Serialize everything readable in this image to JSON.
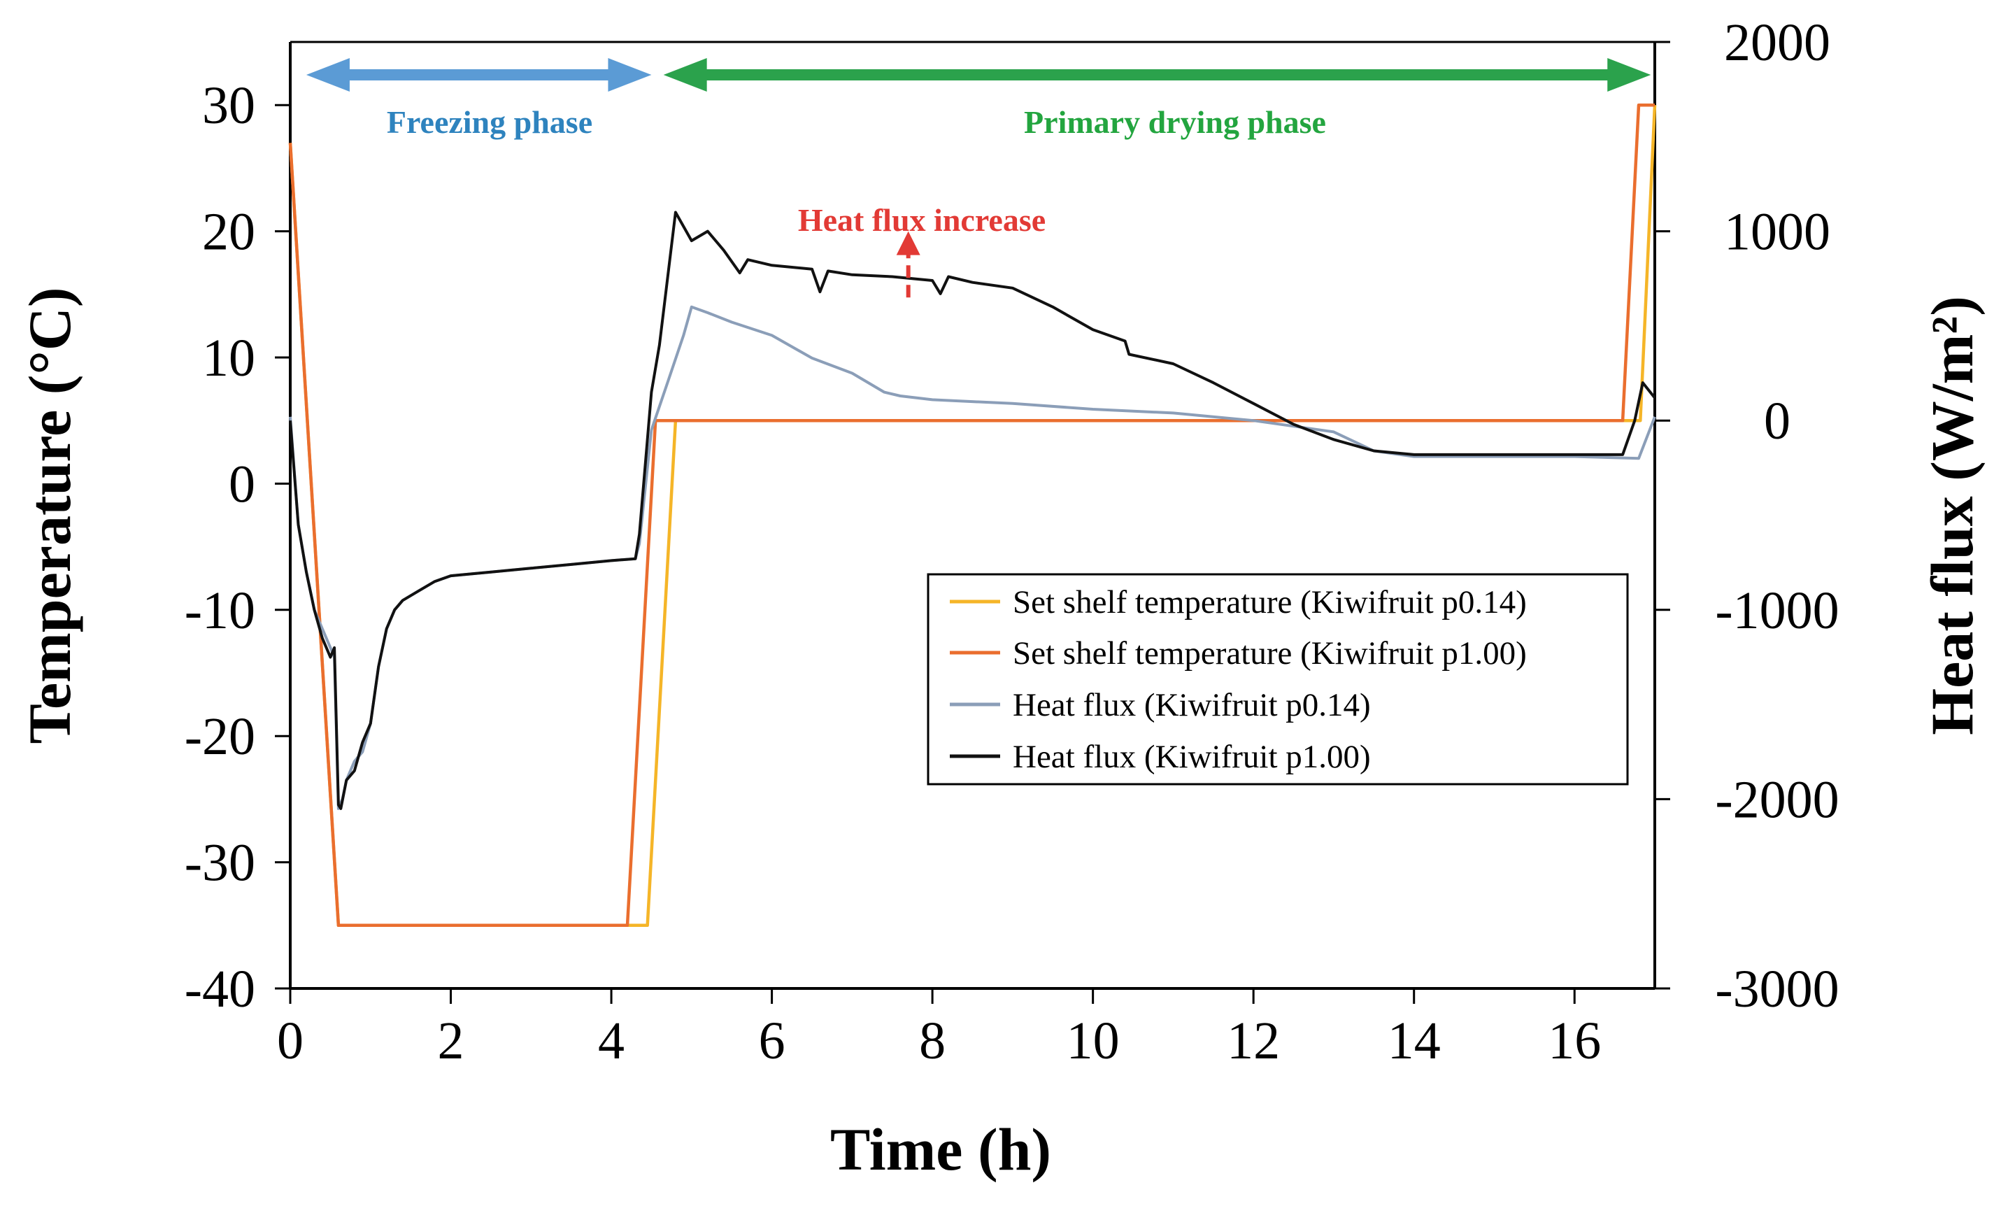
{
  "chart_data": {
    "type": "line",
    "title": "",
    "xlabel": "Time (h)",
    "ylabel_left": "Temperature (°C)",
    "ylabel_right": "Heat flux (W/m²)",
    "xlim": [
      0,
      17
    ],
    "ylim_left": [
      -40,
      35
    ],
    "ylim_right": [
      -3000,
      2000
    ],
    "x_ticks": [
      0,
      2,
      4,
      6,
      8,
      10,
      12,
      14,
      16
    ],
    "x_tick_labels": [
      "0",
      "2",
      "4",
      "6",
      "8",
      "10",
      "12",
      "14",
      "16"
    ],
    "y_left_ticks": [
      -40,
      -30,
      -20,
      -10,
      0,
      10,
      20,
      30
    ],
    "y_left_tick_labels": [
      "-40",
      "-30",
      "-20",
      "-10",
      "0",
      "10",
      "20",
      "30"
    ],
    "y_right_ticks": [
      -3000,
      -2000,
      -1000,
      0,
      1000,
      2000
    ],
    "y_right_tick_labels": [
      "-3000",
      "-2000",
      "-1000",
      "0",
      "1000",
      "2000"
    ],
    "grid": false,
    "legend_position": "center-right",
    "series": [
      {
        "name": "Set shelf temperature (Kiwifruit p0.14)",
        "axis": "left",
        "color": "#F5B528",
        "x": [
          0,
          0.6,
          4.45,
          4.8,
          16.6,
          16.82,
          17.0
        ],
        "y": [
          27,
          -35,
          -35,
          5,
          5,
          5,
          30
        ]
      },
      {
        "name": "Set shelf temperature (Kiwifruit p1.00)",
        "axis": "left",
        "color": "#EA6E2E",
        "x": [
          0,
          0.6,
          4.2,
          4.55,
          16.6,
          16.8,
          17.0
        ],
        "y": [
          27,
          -35,
          -35,
          5,
          5,
          30,
          30
        ]
      },
      {
        "name": "Heat flux (Kiwifruit p0.14)",
        "axis": "right",
        "color": "#8B9EB8",
        "x": [
          0,
          0.1,
          0.2,
          0.3,
          0.4,
          0.5,
          0.55,
          0.6,
          0.65,
          0.7,
          0.8,
          0.9,
          1.0,
          1.1,
          1.2,
          1.3,
          1.4,
          1.6,
          1.8,
          2.0,
          2.5,
          3.0,
          3.5,
          4.0,
          4.3,
          4.35,
          4.5,
          4.7,
          4.9,
          5.0,
          5.2,
          5.5,
          6.0,
          6.5,
          7.0,
          7.4,
          7.6,
          8.0,
          8.5,
          9.0,
          10.0,
          11.0,
          12.0,
          13.0,
          13.5,
          14.0,
          14.5,
          15.0,
          16.0,
          16.8,
          17.0
        ],
        "y": [
          20,
          -550,
          -800,
          -1000,
          -1100,
          -1200,
          -1250,
          -2050,
          -2000,
          -1900,
          -1800,
          -1750,
          -1600,
          -1300,
          -1100,
          -1000,
          -950,
          -900,
          -850,
          -820,
          -800,
          -780,
          -760,
          -740,
          -730,
          -650,
          -50,
          200,
          450,
          600,
          570,
          520,
          450,
          330,
          250,
          150,
          130,
          110,
          100,
          90,
          60,
          40,
          0,
          -60,
          -160,
          -190,
          -190,
          -190,
          -190,
          -200,
          20
        ]
      },
      {
        "name": "Heat flux (Kiwifruit p1.00)",
        "axis": "right",
        "color": "#111111",
        "x": [
          0,
          0.1,
          0.2,
          0.3,
          0.4,
          0.5,
          0.55,
          0.6,
          0.63,
          0.7,
          0.8,
          0.9,
          1.0,
          1.1,
          1.2,
          1.3,
          1.4,
          1.6,
          1.8,
          2.0,
          2.5,
          3.0,
          3.5,
          4.0,
          4.3,
          4.35,
          4.5,
          4.6,
          4.8,
          5.0,
          5.2,
          5.4,
          5.6,
          5.7,
          6.0,
          6.5,
          6.6,
          6.7,
          7.0,
          7.5,
          8.0,
          8.1,
          8.2,
          8.5,
          9.0,
          9.5,
          10.0,
          10.4,
          10.45,
          11.0,
          11.5,
          12.0,
          12.5,
          13.0,
          13.5,
          14.0,
          14.5,
          15.0,
          16.0,
          16.6,
          16.75,
          16.85,
          17.0
        ],
        "y": [
          0,
          -550,
          -800,
          -1000,
          -1150,
          -1250,
          -1200,
          -2030,
          -2050,
          -1900,
          -1850,
          -1700,
          -1600,
          -1300,
          -1100,
          -1000,
          -950,
          -900,
          -850,
          -820,
          -800,
          -780,
          -760,
          -740,
          -730,
          -600,
          150,
          400,
          1100,
          950,
          1000,
          900,
          780,
          850,
          820,
          800,
          680,
          790,
          770,
          760,
          740,
          670,
          760,
          730,
          700,
          600,
          480,
          420,
          350,
          300,
          200,
          90,
          -20,
          -100,
          -160,
          -180,
          -180,
          -180,
          -180,
          -180,
          0,
          200,
          120
        ]
      }
    ],
    "annotations": [
      {
        "text": "Freezing phase",
        "color": "#2E83BE"
      },
      {
        "text": "Primary drying phase",
        "color": "#23A53F"
      },
      {
        "text": "Heat flux increase",
        "color": "#E23A35"
      }
    ],
    "phase_arrows": [
      {
        "name": "freezing",
        "x_start": 0.2,
        "x_end": 4.5,
        "color": "#5B9BD5"
      },
      {
        "name": "primary-drying",
        "x_start": 4.65,
        "x_end": 16.95,
        "color": "#2BA24C"
      }
    ],
    "increase_arrow": {
      "x": 7.7,
      "y_from": 650,
      "y_to": 1000,
      "axis": "right",
      "color": "#E23A35"
    }
  }
}
